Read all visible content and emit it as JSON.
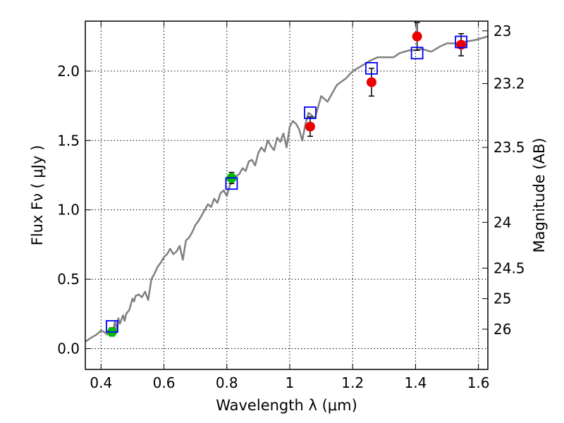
{
  "chart_data": {
    "type": "scatter",
    "xlabel": "Wavelength  λ (μm)",
    "ylabel": "Flux  Fν  ( μJy )",
    "ylabel_right": "Magnitude (AB)",
    "xlim": [
      0.35,
      1.63
    ],
    "ylim": [
      -0.15,
      2.36
    ],
    "grid": true,
    "x_ticks": [
      {
        "value": 0.4,
        "label": "0.4"
      },
      {
        "value": 0.6,
        "label": "0.6"
      },
      {
        "value": 0.8,
        "label": "0.8"
      },
      {
        "value": 1.0,
        "label": "1"
      },
      {
        "value": 1.2,
        "label": "1.2"
      },
      {
        "value": 1.4,
        "label": "1.4"
      },
      {
        "value": 1.6,
        "label": "1.6"
      }
    ],
    "y_ticks": [
      {
        "value": 0.0,
        "label": "0.0"
      },
      {
        "value": 0.5,
        "label": "0.5"
      },
      {
        "value": 1.0,
        "label": "1.0"
      },
      {
        "value": 1.5,
        "label": "1.5"
      },
      {
        "value": 2.0,
        "label": "2.0"
      }
    ],
    "right_ticks": [
      {
        "flux": 2.29,
        "label": "23"
      },
      {
        "flux": 1.91,
        "label": "23.2"
      },
      {
        "flux": 1.45,
        "label": "23.5"
      },
      {
        "flux": 0.91,
        "label": "24"
      },
      {
        "flux": 0.58,
        "label": "24.5"
      },
      {
        "flux": 0.36,
        "label": "25"
      },
      {
        "flux": 0.14,
        "label": "26"
      }
    ],
    "model_spectrum": {
      "color": "#808080",
      "x": [
        0.35,
        0.37,
        0.385,
        0.4,
        0.41,
        0.42,
        0.43,
        0.44,
        0.445,
        0.45,
        0.455,
        0.46,
        0.47,
        0.475,
        0.48,
        0.49,
        0.5,
        0.505,
        0.51,
        0.52,
        0.53,
        0.54,
        0.55,
        0.56,
        0.57,
        0.58,
        0.59,
        0.6,
        0.61,
        0.62,
        0.63,
        0.64,
        0.65,
        0.66,
        0.67,
        0.68,
        0.69,
        0.7,
        0.71,
        0.72,
        0.73,
        0.74,
        0.75,
        0.76,
        0.77,
        0.78,
        0.79,
        0.8,
        0.81,
        0.82,
        0.83,
        0.84,
        0.85,
        0.86,
        0.87,
        0.88,
        0.89,
        0.9,
        0.91,
        0.92,
        0.93,
        0.94,
        0.95,
        0.96,
        0.97,
        0.98,
        0.99,
        1.0,
        1.01,
        1.02,
        1.03,
        1.04,
        1.05,
        1.06,
        1.08,
        1.1,
        1.12,
        1.15,
        1.18,
        1.2,
        1.23,
        1.26,
        1.28,
        1.3,
        1.33,
        1.35,
        1.38,
        1.4,
        1.42,
        1.45,
        1.48,
        1.5,
        1.53,
        1.55,
        1.58,
        1.6,
        1.63
      ],
      "y": [
        0.05,
        0.08,
        0.1,
        0.13,
        0.12,
        0.1,
        0.14,
        0.15,
        0.2,
        0.12,
        0.22,
        0.18,
        0.24,
        0.2,
        0.25,
        0.28,
        0.36,
        0.34,
        0.38,
        0.39,
        0.37,
        0.41,
        0.35,
        0.5,
        0.54,
        0.59,
        0.62,
        0.66,
        0.68,
        0.72,
        0.68,
        0.7,
        0.74,
        0.64,
        0.78,
        0.8,
        0.84,
        0.89,
        0.92,
        0.96,
        1.0,
        1.04,
        1.02,
        1.08,
        1.05,
        1.12,
        1.14,
        1.1,
        1.18,
        1.2,
        1.24,
        1.26,
        1.3,
        1.28,
        1.35,
        1.36,
        1.32,
        1.41,
        1.45,
        1.42,
        1.5,
        1.46,
        1.43,
        1.52,
        1.49,
        1.55,
        1.45,
        1.6,
        1.64,
        1.62,
        1.58,
        1.5,
        1.62,
        1.7,
        1.66,
        1.82,
        1.78,
        1.9,
        1.95,
        2.0,
        2.04,
        2.08,
        2.1,
        2.1,
        2.1,
        2.13,
        2.15,
        2.15,
        2.16,
        2.14,
        2.18,
        2.2,
        2.2,
        2.21,
        2.22,
        2.23,
        2.25
      ]
    },
    "series": [
      {
        "marker": "circle",
        "color": "#00bb00",
        "points": [
          {
            "x": 0.435,
            "y": 0.12,
            "err": 0.03
          },
          {
            "x": 0.815,
            "y": 1.23,
            "err": 0.04
          }
        ]
      },
      {
        "marker": "circle",
        "color": "#ee0000",
        "points": [
          {
            "x": 1.065,
            "y": 1.6,
            "err": 0.07
          },
          {
            "x": 1.26,
            "y": 1.92,
            "err": 0.1
          },
          {
            "x": 1.405,
            "y": 2.25,
            "err": 0.1
          },
          {
            "x": 1.545,
            "y": 2.19,
            "err": 0.08
          }
        ]
      },
      {
        "marker": "square-open",
        "color": "#0000ff",
        "points": [
          {
            "x": 0.435,
            "y": 0.16
          },
          {
            "x": 0.815,
            "y": 1.19
          },
          {
            "x": 1.065,
            "y": 1.7
          },
          {
            "x": 1.26,
            "y": 2.02
          },
          {
            "x": 1.405,
            "y": 2.13
          },
          {
            "x": 1.545,
            "y": 2.21
          }
        ]
      }
    ]
  }
}
